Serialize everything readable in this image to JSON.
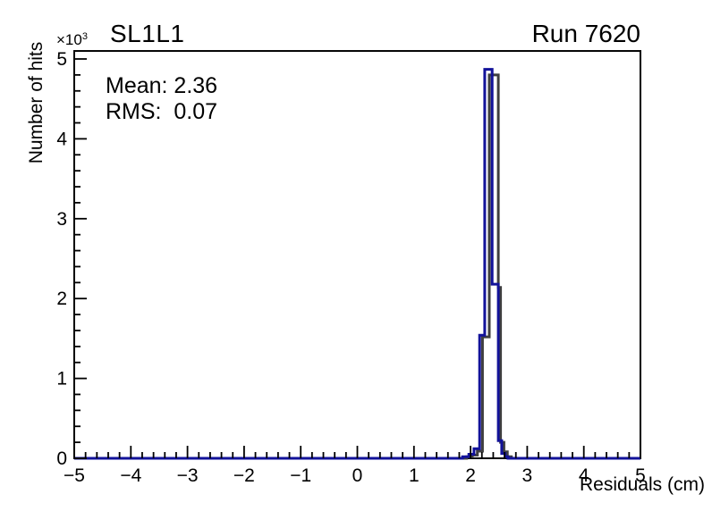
{
  "chart_data": {
    "type": "histogram-step",
    "pad_title": "SL1L1",
    "corner_label": "Run 7620",
    "stats_text": {
      "mean_line": "Mean: 2.36",
      "rms_line": "RMS:  0.07"
    },
    "stats": {
      "mean": 2.36,
      "rms": 0.07
    },
    "xlabel": "Residuals (cm)",
    "ylabel": "Number of hits",
    "y_exponent": {
      "base": "×10",
      "exp": "3"
    },
    "xlim": [
      -5,
      5
    ],
    "ylim": [
      0,
      5.1
    ],
    "y_unit_scale": 1000,
    "x_major_ticks": [
      -5,
      -4,
      -3,
      -2,
      -1,
      0,
      1,
      2,
      3,
      4,
      5
    ],
    "x_tick_labels": [
      "−5",
      "−4",
      "−3",
      "−2",
      "−1",
      "0",
      "1",
      "2",
      "3",
      "4",
      "5"
    ],
    "y_major_ticks": [
      0,
      1,
      2,
      3,
      4,
      5
    ],
    "y_tick_labels": [
      "0",
      "1",
      "2",
      "3",
      "4",
      "5"
    ],
    "minor_ticks_per_division": 5,
    "grid": false,
    "legend": null,
    "frame_color": "#000000",
    "background_color": "#ffffff",
    "series": [
      {
        "name": "histogram-reference",
        "color": "#3f3f3f",
        "line_width": 3,
        "bin_edges": [
          1.93,
          2.03,
          2.12,
          2.21,
          2.33,
          2.49,
          2.53,
          2.59,
          2.65,
          2.72
        ],
        "bin_values": [
          0.02,
          0.04,
          0.09,
          1.52,
          4.8,
          2.14,
          0.2,
          0.08,
          0.02
        ]
      },
      {
        "name": "histogram-primary",
        "color": "#12129a",
        "line_width": 3,
        "bin_edges": [
          1.86,
          1.97,
          2.06,
          2.16,
          2.25,
          2.38,
          2.49,
          2.55,
          2.61,
          2.66
        ],
        "bin_values": [
          0.02,
          0.05,
          0.12,
          1.54,
          4.87,
          2.18,
          0.22,
          0.06,
          0.02
        ]
      }
    ]
  }
}
